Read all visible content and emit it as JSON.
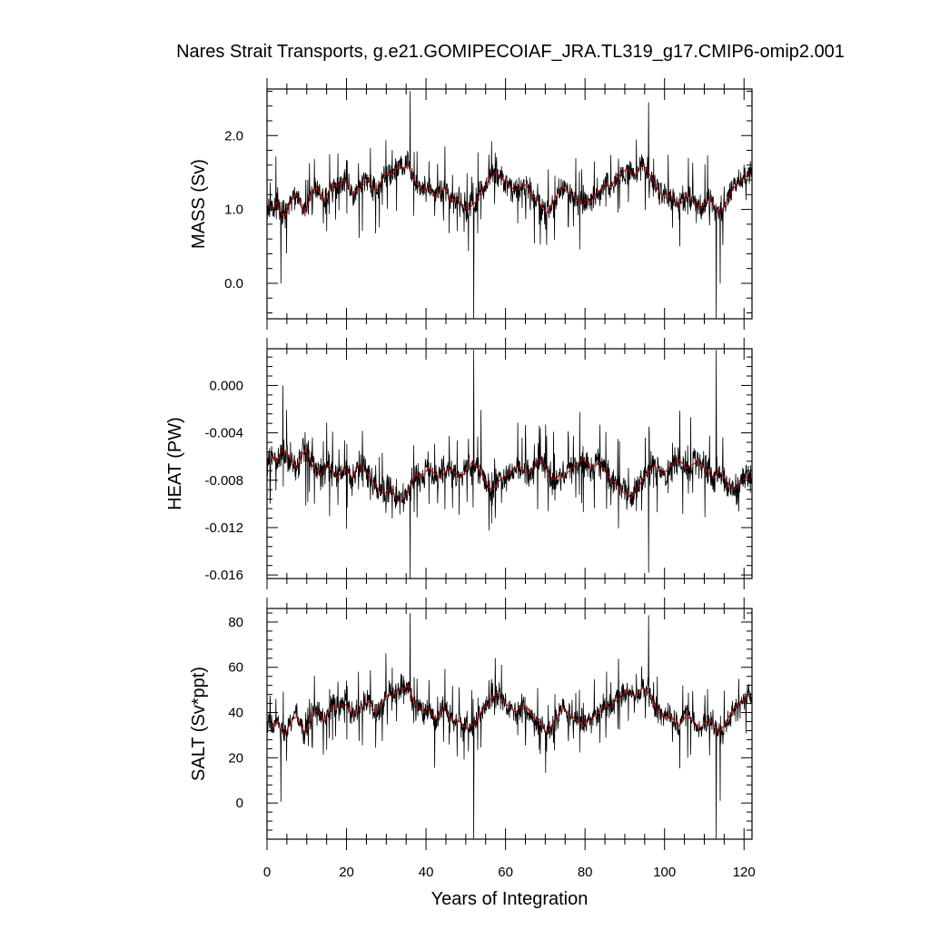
{
  "chart_data": {
    "type": "line",
    "title": "Nares Strait Transports, g.e21.GOMIPECOIAF_JRA.TL319_g17.CMIP6-omip2.001",
    "xlabel": "Years of Integration",
    "xlim": [
      0,
      122
    ],
    "x_ticks": [
      "0",
      "20",
      "40",
      "60",
      "80",
      "100",
      "120"
    ],
    "colors": {
      "monthly": "#000000",
      "annual": "#cc0000"
    },
    "panels": [
      {
        "ylabel": "MASS (Sv)",
        "ylim": [
          -0.48,
          2.63
        ],
        "y_ticks": [
          "0.0",
          "1.0",
          "2.0"
        ],
        "annual_mean": [
          1.05,
          1.0,
          1.1,
          0.95,
          0.9,
          1.05,
          1.15,
          1.2,
          1.05,
          0.95,
          1.1,
          1.25,
          1.3,
          1.2,
          1.1,
          1.25,
          1.35,
          1.3,
          1.35,
          1.4,
          1.3,
          1.2,
          1.25,
          1.3,
          1.35,
          1.4,
          1.3,
          1.25,
          1.35,
          1.45,
          1.5,
          1.45,
          1.55,
          1.6,
          1.55,
          1.6,
          1.45,
          1.35,
          1.3,
          1.25,
          1.3,
          1.2,
          1.15,
          1.25,
          1.3,
          1.2,
          1.1,
          1.15,
          1.1,
          1.05,
          1.0,
          1.05,
          1.1,
          1.2,
          1.3,
          1.35,
          1.45,
          1.5,
          1.45,
          1.4,
          1.35,
          1.3,
          1.25,
          1.3,
          1.35,
          1.3,
          1.2,
          1.15,
          1.1,
          1.0,
          0.95,
          1.05,
          1.15,
          1.25,
          1.3,
          1.25,
          1.2,
          1.15,
          1.1,
          1.05,
          1.15,
          1.1,
          1.2,
          1.25,
          1.3,
          1.35,
          1.3,
          1.4,
          1.45,
          1.5,
          1.55,
          1.5,
          1.45,
          1.55,
          1.6,
          1.55,
          1.45,
          1.35,
          1.25,
          1.2,
          1.15,
          1.2,
          1.1,
          1.05,
          1.1,
          1.2,
          1.15,
          1.1,
          1.0,
          1.05,
          1.1,
          1.15,
          1.05,
          0.95,
          1.0,
          1.1,
          1.2,
          1.3,
          1.35,
          1.4,
          1.45,
          1.5
        ],
        "noise_amp": 0.3,
        "spikes": [
          {
            "x": 52,
            "y": -0.48
          },
          {
            "x": 113,
            "y": -0.48
          },
          {
            "x": 36,
            "y": 2.6
          },
          {
            "x": 96,
            "y": 2.45
          },
          {
            "x": 3.5,
            "y": 0.0
          },
          {
            "x": 114,
            "y": 0.0
          }
        ]
      },
      {
        "ylabel": "HEAT (PW)",
        "ylim": [
          -0.0163,
          0.0031
        ],
        "y_ticks": [
          "0.000",
          "-0.004",
          "-0.008",
          "-0.012",
          "-0.016"
        ],
        "annual_mean": [
          -0.0065,
          -0.006,
          -0.0065,
          -0.0055,
          -0.0055,
          -0.006,
          -0.0065,
          -0.007,
          -0.006,
          -0.0055,
          -0.006,
          -0.0068,
          -0.0072,
          -0.0075,
          -0.007,
          -0.0068,
          -0.0072,
          -0.0078,
          -0.0074,
          -0.007,
          -0.0074,
          -0.0078,
          -0.007,
          -0.0068,
          -0.0072,
          -0.0076,
          -0.008,
          -0.0085,
          -0.009,
          -0.0092,
          -0.0088,
          -0.009,
          -0.0095,
          -0.0098,
          -0.0095,
          -0.009,
          -0.008,
          -0.0075,
          -0.0078,
          -0.0075,
          -0.007,
          -0.0072,
          -0.0075,
          -0.0078,
          -0.0075,
          -0.007,
          -0.0072,
          -0.0074,
          -0.0078,
          -0.0075,
          -0.007,
          -0.0065,
          -0.0068,
          -0.0072,
          -0.0078,
          -0.0085,
          -0.0088,
          -0.0085,
          -0.008,
          -0.0078,
          -0.0075,
          -0.0072,
          -0.007,
          -0.0068,
          -0.0072,
          -0.0075,
          -0.0072,
          -0.0068,
          -0.0062,
          -0.0065,
          -0.0072,
          -0.0078,
          -0.008,
          -0.0075,
          -0.0078,
          -0.0074,
          -0.007,
          -0.0068,
          -0.0065,
          -0.0062,
          -0.0066,
          -0.007,
          -0.0068,
          -0.0065,
          -0.007,
          -0.0075,
          -0.008,
          -0.0082,
          -0.0086,
          -0.009,
          -0.0092,
          -0.0095,
          -0.009,
          -0.0085,
          -0.008,
          -0.0075,
          -0.007,
          -0.0068,
          -0.0072,
          -0.0075,
          -0.0072,
          -0.0068,
          -0.0065,
          -0.0062,
          -0.0066,
          -0.007,
          -0.0068,
          -0.0066,
          -0.0065,
          -0.0068,
          -0.0072,
          -0.0075,
          -0.0078,
          -0.0072,
          -0.0075,
          -0.008,
          -0.0085,
          -0.0088,
          -0.0085,
          -0.008,
          -0.0078,
          -0.008,
          -0.0078
        ],
        "noise_amp": 0.0022,
        "spikes": [
          {
            "x": 52,
            "y": 0.003
          },
          {
            "x": 113,
            "y": 0.003
          },
          {
            "x": 36,
            "y": -0.0163
          },
          {
            "x": 96,
            "y": -0.0158
          },
          {
            "x": 4,
            "y": 0.0
          }
        ]
      },
      {
        "ylabel": "SALT (Sv*ppt)",
        "ylim": [
          -16,
          86
        ],
        "y_ticks": [
          "80",
          "60",
          "40",
          "20",
          "0"
        ],
        "annual_mean": [
          35,
          34,
          36,
          32,
          30,
          34,
          37,
          38,
          34,
          31,
          35,
          39,
          41,
          39,
          36,
          40,
          43,
          42,
          43,
          44,
          42,
          39,
          40,
          42,
          43,
          45,
          42,
          40,
          43,
          46,
          48,
          47,
          49,
          51,
          50,
          52,
          47,
          43,
          42,
          40,
          42,
          39,
          37,
          40,
          42,
          39,
          36,
          37,
          36,
          34,
          33,
          34,
          36,
          39,
          42,
          43,
          46,
          48,
          47,
          45,
          43,
          42,
          40,
          42,
          43,
          42,
          39,
          37,
          36,
          33,
          31,
          34,
          37,
          40,
          42,
          40,
          39,
          37,
          36,
          34,
          37,
          36,
          39,
          40,
          42,
          43,
          42,
          45,
          46,
          48,
          50,
          48,
          47,
          49,
          51,
          50,
          47,
          43,
          40,
          39,
          37,
          39,
          36,
          34,
          36,
          39,
          37,
          36,
          33,
          34,
          36,
          37,
          34,
          31,
          33,
          36,
          39,
          42,
          43,
          45,
          46,
          48
        ],
        "noise_amp": 9.5,
        "spikes": [
          {
            "x": 52,
            "y": -16
          },
          {
            "x": 113,
            "y": -16
          },
          {
            "x": 36,
            "y": 84
          },
          {
            "x": 96,
            "y": 83
          },
          {
            "x": 3.5,
            "y": 0.5
          },
          {
            "x": 114,
            "y": 1
          }
        ]
      }
    ]
  }
}
